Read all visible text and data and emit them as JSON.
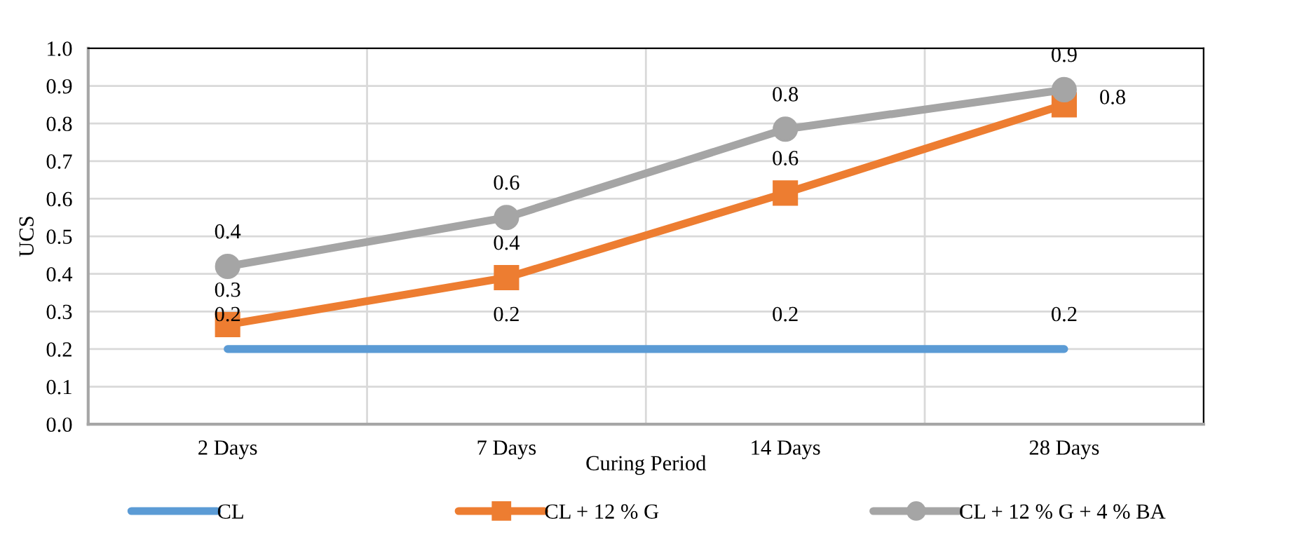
{
  "chart_data": {
    "type": "line",
    "xlabel": "Curing Period",
    "ylabel": "UCS",
    "categories": [
      "2 Days",
      "7 Days",
      "14 Days",
      "28 Days"
    ],
    "series": [
      {
        "name": "CL",
        "color": "#5b9bd5",
        "marker": "none",
        "values": [
          0.2,
          0.2,
          0.2,
          0.2
        ],
        "value_labels": [
          "0.2",
          "0.2",
          "0.2",
          "0.2"
        ]
      },
      {
        "name": "CL + 12 % G",
        "color": "#ed7d31",
        "marker": "square",
        "values": [
          0.265,
          0.39,
          0.615,
          0.85
        ],
        "value_labels": [
          "0.3",
          "0.4",
          "0.6",
          "0.8"
        ]
      },
      {
        "name": "CL + 12 % G + 4 % BA",
        "color": "#a5a5a5",
        "marker": "circle",
        "values": [
          0.42,
          0.55,
          0.785,
          0.89
        ],
        "value_labels": [
          "0.4",
          "0.6",
          "0.8",
          "0.9"
        ]
      }
    ],
    "ylim": [
      0,
      1.0
    ],
    "yticks": [
      {
        "value": 0,
        "label": "0.0"
      },
      0.1,
      0.2,
      0.3,
      0.4,
      0.5,
      0.6,
      0.7,
      0.8,
      0.9,
      {
        "value": 1,
        "label": "1.0"
      }
    ],
    "grid": true,
    "legend": "bottom"
  }
}
